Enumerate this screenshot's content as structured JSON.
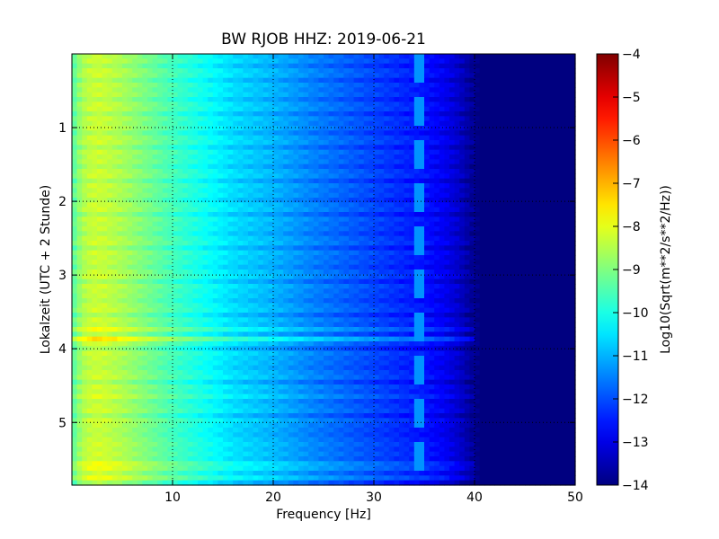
{
  "chart_data": {
    "type": "heatmap",
    "title": "BW RJOB HHZ: 2019-06-21",
    "xlabel": "Frequency [Hz]",
    "ylabel": "Lokalzeit (UTC + 2 Stunde)",
    "colorbar_label": "Log10(Sqrt(m**2/s**2/Hz))",
    "xlim": [
      0,
      50
    ],
    "ylim": [
      5.85,
      0
    ],
    "clim": [
      -14,
      -4
    ],
    "x_ticks": [
      10,
      20,
      30,
      40,
      50
    ],
    "x_tick_labels": [
      "10",
      "20",
      "30",
      "40",
      "50"
    ],
    "y_ticks": [
      1,
      2,
      3,
      4,
      5
    ],
    "y_tick_labels": [
      "1",
      "2",
      "3",
      "4",
      "5"
    ],
    "colorbar_ticks": [
      -4,
      -5,
      -6,
      -7,
      -8,
      -9,
      -10,
      -11,
      -12,
      -13,
      -14
    ],
    "colorbar_tick_labels": [
      "−4",
      "−5",
      "−6",
      "−7",
      "−8",
      "−9",
      "−10",
      "−11",
      "−12",
      "−13",
      "−14"
    ],
    "colormap": "jet",
    "grid": true,
    "frequency_profile": {
      "freq_hz": [
        0,
        1,
        2,
        3,
        5,
        8,
        10,
        13,
        16,
        20,
        24,
        28,
        32,
        35,
        37,
        38.5,
        39.5,
        40.5,
        42,
        50
      ],
      "log10_amplitude": [
        -9.5,
        -8.6,
        -8.3,
        -8.3,
        -8.6,
        -9.2,
        -9.6,
        -10.1,
        -10.6,
        -11.0,
        -11.5,
        -11.9,
        -12.3,
        -12.6,
        -12.9,
        -13.3,
        -13.7,
        -14.0,
        -14.0,
        -14.0
      ]
    },
    "narrowband_line": {
      "freq_hz": 34.5,
      "log10_amplitude": -11.3
    },
    "loud_rows": [
      {
        "time_h": 3.73,
        "log10_delta": 0.5
      },
      {
        "time_h": 3.86,
        "log10_delta": 0.8
      },
      {
        "time_h": 4.65,
        "log10_delta": 0.3
      },
      {
        "time_h": 5.35,
        "log10_delta": 0.3
      },
      {
        "time_h": 5.6,
        "log10_delta": 0.5
      },
      {
        "time_h": 5.75,
        "log10_delta": 0.3
      }
    ]
  }
}
